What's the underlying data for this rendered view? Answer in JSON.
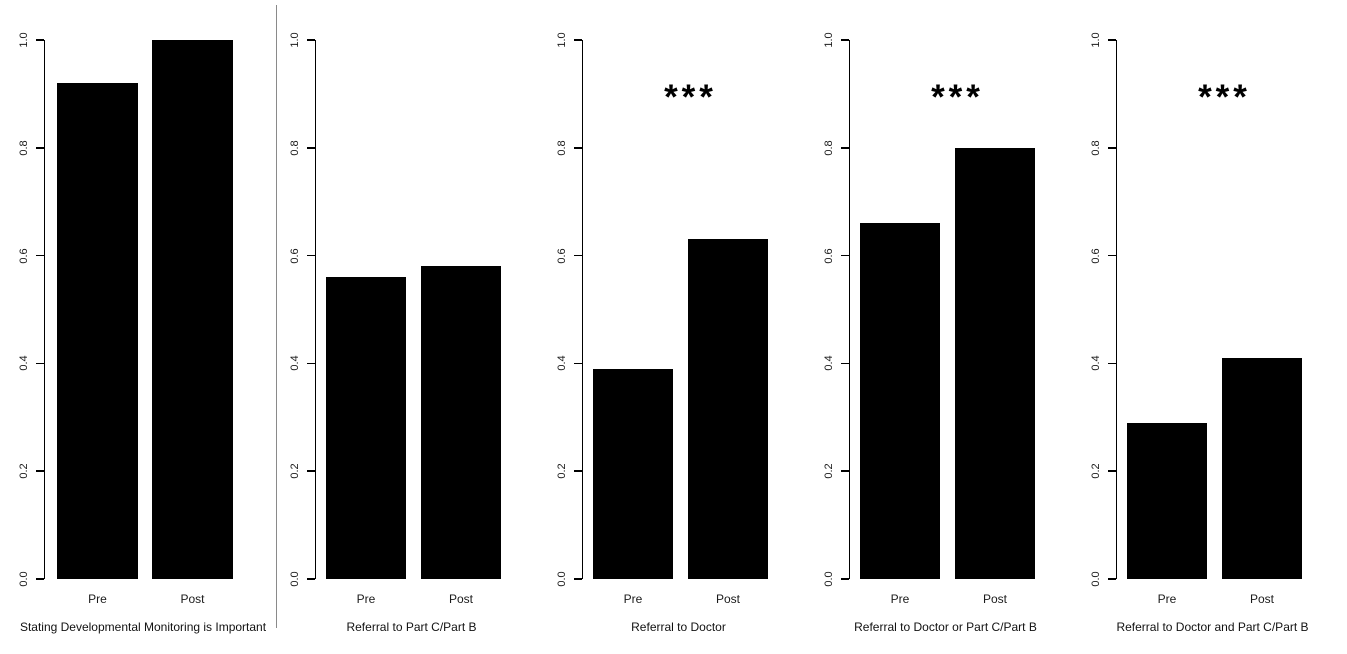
{
  "figure": {
    "background": "#ffffff",
    "bar_color": "#000000",
    "axis_color": "#000000",
    "text_color": "#1a1a1a",
    "separator_color": "#8a8a8a",
    "significance_marker": "***"
  },
  "axis": {
    "tick_values": [
      0.0,
      0.2,
      0.4,
      0.6,
      0.8,
      1.0
    ],
    "tick_labels": [
      "0.0",
      "0.2",
      "0.4",
      "0.6",
      "0.8",
      "1.0"
    ],
    "range": [
      0,
      1
    ]
  },
  "categories": [
    "Pre",
    "Post"
  ],
  "chart_data": [
    {
      "type": "bar",
      "title": "Stating Developmental Monitoring is Important",
      "categories": [
        "Pre",
        "Post"
      ],
      "values": [
        0.92,
        1.0
      ],
      "significance": "",
      "ylim": [
        0,
        1
      ],
      "yticks": [
        0.0,
        0.2,
        0.4,
        0.6,
        0.8,
        1.0
      ],
      "grid": false,
      "legend": null
    },
    {
      "type": "bar",
      "title": "Referral to Part C/Part B",
      "categories": [
        "Pre",
        "Post"
      ],
      "values": [
        0.56,
        0.58
      ],
      "significance": "",
      "ylim": [
        0,
        1
      ],
      "yticks": [
        0.0,
        0.2,
        0.4,
        0.6,
        0.8,
        1.0
      ],
      "grid": false,
      "legend": null
    },
    {
      "type": "bar",
      "title": "Referral to Doctor",
      "categories": [
        "Pre",
        "Post"
      ],
      "values": [
        0.39,
        0.63
      ],
      "significance": "***",
      "ylim": [
        0,
        1
      ],
      "yticks": [
        0.0,
        0.2,
        0.4,
        0.6,
        0.8,
        1.0
      ],
      "grid": false,
      "legend": null
    },
    {
      "type": "bar",
      "title": "Referral to Doctor or Part C/Part B",
      "categories": [
        "Pre",
        "Post"
      ],
      "values": [
        0.66,
        0.8
      ],
      "significance": "***",
      "ylim": [
        0,
        1
      ],
      "yticks": [
        0.0,
        0.2,
        0.4,
        0.6,
        0.8,
        1.0
      ],
      "grid": false,
      "legend": null
    },
    {
      "type": "bar",
      "title": "Referral to Doctor and Part C/Part B",
      "categories": [
        "Pre",
        "Post"
      ],
      "values": [
        0.29,
        0.41
      ],
      "significance": "***",
      "ylim": [
        0,
        1
      ],
      "yticks": [
        0.0,
        0.2,
        0.4,
        0.6,
        0.8,
        1.0
      ],
      "grid": false,
      "legend": null
    }
  ]
}
